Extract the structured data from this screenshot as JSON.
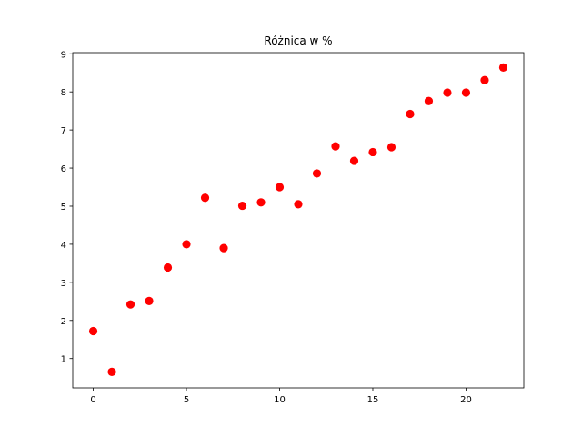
{
  "chart_data": {
    "type": "scatter",
    "title": "Różnica w %",
    "xlabel": "",
    "ylabel": "",
    "xlim": [
      -1.1,
      23.1
    ],
    "ylim": [
      0.23,
      9.03
    ],
    "xticks": [
      0,
      5,
      10,
      15,
      20
    ],
    "yticks": [
      1,
      2,
      3,
      4,
      5,
      6,
      7,
      8,
      9
    ],
    "grid": false,
    "legend": "none",
    "marker_color": "#ff0000",
    "series": [
      {
        "x": [
          0,
          1,
          2,
          3,
          4,
          5,
          6,
          7,
          8,
          9,
          10,
          11,
          12,
          13,
          14,
          15,
          16,
          17,
          18,
          19,
          20,
          21,
          22
        ],
        "y": [
          1.72,
          0.65,
          2.42,
          2.51,
          3.39,
          4.0,
          5.22,
          3.9,
          5.01,
          5.1,
          5.5,
          5.05,
          5.86,
          6.57,
          6.19,
          6.42,
          6.55,
          7.42,
          7.76,
          7.98,
          7.98,
          8.31,
          8.64
        ]
      }
    ]
  }
}
